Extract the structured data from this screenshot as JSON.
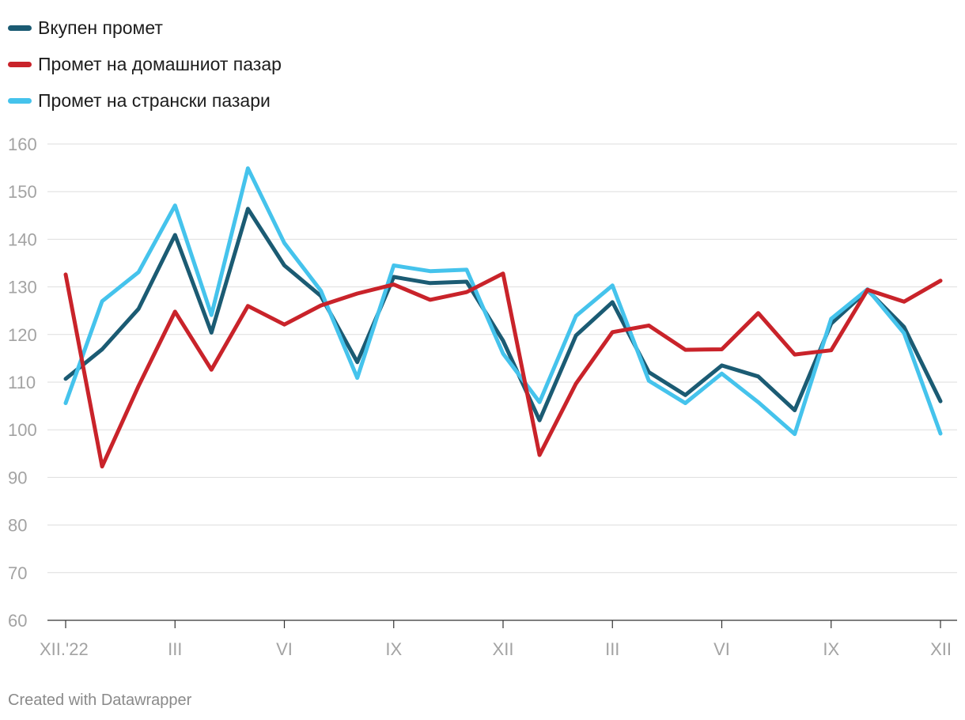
{
  "chart_data": {
    "type": "line",
    "title": "",
    "xlabel": "",
    "ylabel": "",
    "ylim": [
      60,
      160
    ],
    "yticks": [
      60,
      70,
      80,
      90,
      100,
      110,
      120,
      130,
      140,
      150,
      160
    ],
    "grid": true,
    "legend_position": "top-left",
    "x_tick_labels": [
      {
        "index": 0,
        "label": "XII.'22"
      },
      {
        "index": 3,
        "label": "III"
      },
      {
        "index": 6,
        "label": "VI"
      },
      {
        "index": 9,
        "label": "IX"
      },
      {
        "index": 12,
        "label": "XII"
      },
      {
        "index": 15,
        "label": "III"
      },
      {
        "index": 18,
        "label": "VI"
      },
      {
        "index": 21,
        "label": "IX"
      },
      {
        "index": 24,
        "label": "XII"
      }
    ],
    "series": [
      {
        "name": "Вкупен промет",
        "color": "#1b5b73",
        "values": [
          110.7,
          116.9,
          125.4,
          140.9,
          120.4,
          146.4,
          134.5,
          128.1,
          114.2,
          132.1,
          130.8,
          131.1,
          118.7,
          102.0,
          119.8,
          126.8,
          112.1,
          107.3,
          113.5,
          111.2,
          104.1,
          122.3,
          129.3,
          121.6,
          106.0
        ]
      },
      {
        "name": "Промет на домашниот пазар",
        "color": "#c9232a",
        "values": [
          132.6,
          92.3,
          109.2,
          124.8,
          112.6,
          126.0,
          122.1,
          126.1,
          128.6,
          130.5,
          127.3,
          128.9,
          132.8,
          94.7,
          109.7,
          120.5,
          121.9,
          116.8,
          116.9,
          124.5,
          115.8,
          116.7,
          129.4,
          126.9,
          131.3
        ]
      },
      {
        "name": "Промет на странски пазари",
        "color": "#45c3ec",
        "values": [
          105.6,
          127.0,
          133.1,
          147.1,
          124.1,
          154.9,
          139.2,
          129.2,
          110.9,
          134.5,
          133.3,
          133.6,
          116.0,
          105.8,
          123.9,
          130.3,
          110.3,
          105.6,
          111.8,
          105.8,
          99.1,
          123.3,
          129.5,
          120.3,
          99.2
        ]
      }
    ]
  },
  "footer": {
    "credit": "Created with Datawrapper"
  }
}
